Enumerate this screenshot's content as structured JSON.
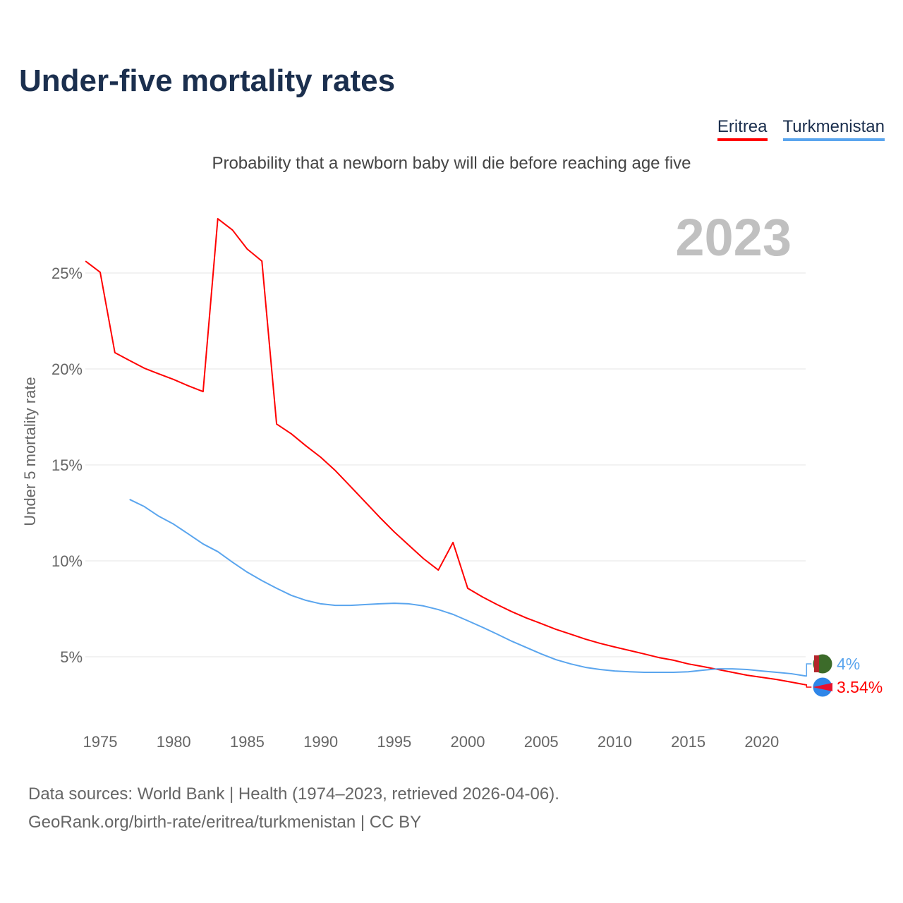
{
  "title": "Under-five mortality rates",
  "subtitle": "Probability that a newborn baby will die before reaching age five",
  "source_line1": "Data sources: World Bank | Health (1974–2023, retrieved 2026-04-06).",
  "source_line2": "GeoRank.org/birth-rate/eritrea/turkmenistan | CC BY",
  "chart_data": {
    "type": "line",
    "title": "Under-five mortality rates",
    "ylabel": "Under 5 mortality rate",
    "xlabel": "",
    "year_label": "2023",
    "xlim": [
      1974,
      2023
    ],
    "ylim": [
      2,
      28
    ],
    "yticks": [
      5,
      10,
      15,
      20,
      25
    ],
    "ytick_labels": [
      "5%",
      "10%",
      "15%",
      "20%",
      "25%"
    ],
    "xticks": [
      1975,
      1980,
      1985,
      1990,
      1995,
      2000,
      2005,
      2010,
      2015,
      2020
    ],
    "grid": true,
    "legend_position": "top-right",
    "series": [
      {
        "name": "Eritrea",
        "color": "#ff0000",
        "end_label": "3.54%",
        "x": [
          1974,
          1975,
          1976,
          1977,
          1978,
          1979,
          1980,
          1981,
          1982,
          1983,
          1984,
          1985,
          1986,
          1987,
          1988,
          1989,
          1990,
          1991,
          1992,
          1993,
          1994,
          1995,
          1996,
          1997,
          1998,
          1999,
          2000,
          2001,
          2002,
          2003,
          2004,
          2005,
          2006,
          2007,
          2008,
          2009,
          2010,
          2011,
          2012,
          2013,
          2014,
          2015,
          2016,
          2017,
          2018,
          2019,
          2020,
          2021,
          2022,
          2023
        ],
        "values": [
          25.62,
          25.04,
          20.85,
          20.44,
          20.04,
          19.74,
          19.45,
          19.12,
          18.82,
          27.83,
          27.24,
          26.25,
          25.62,
          17.13,
          16.62,
          15.99,
          15.4,
          14.7,
          13.9,
          13.09,
          12.28,
          11.51,
          10.81,
          10.11,
          9.52,
          10.96,
          8.57,
          8.12,
          7.72,
          7.35,
          7.02,
          6.73,
          6.43,
          6.18,
          5.92,
          5.7,
          5.51,
          5.33,
          5.15,
          4.96,
          4.82,
          4.63,
          4.49,
          4.34,
          4.19,
          4.04,
          3.93,
          3.82,
          3.68,
          3.54
        ]
      },
      {
        "name": "Turkmenistan",
        "color": "#5aa5ee",
        "end_label": "4%",
        "x": [
          1977,
          1978,
          1979,
          1980,
          1981,
          1982,
          1983,
          1984,
          1985,
          1986,
          1987,
          1988,
          1989,
          1990,
          1991,
          1992,
          1993,
          1994,
          1995,
          1996,
          1997,
          1998,
          1999,
          2000,
          2001,
          2002,
          2003,
          2004,
          2005,
          2006,
          2007,
          2008,
          2009,
          2010,
          2011,
          2012,
          2013,
          2014,
          2015,
          2016,
          2017,
          2018,
          2019,
          2020,
          2021,
          2022,
          2023
        ],
        "values": [
          13.2,
          12.83,
          12.32,
          11.91,
          11.4,
          10.88,
          10.48,
          9.93,
          9.41,
          8.97,
          8.57,
          8.2,
          7.94,
          7.76,
          7.68,
          7.68,
          7.72,
          7.76,
          7.79,
          7.76,
          7.65,
          7.46,
          7.21,
          6.88,
          6.54,
          6.18,
          5.81,
          5.48,
          5.15,
          4.85,
          4.63,
          4.45,
          4.34,
          4.26,
          4.22,
          4.19,
          4.19,
          4.19,
          4.22,
          4.3,
          4.37,
          4.37,
          4.34,
          4.26,
          4.19,
          4.12,
          4.0
        ]
      }
    ]
  }
}
